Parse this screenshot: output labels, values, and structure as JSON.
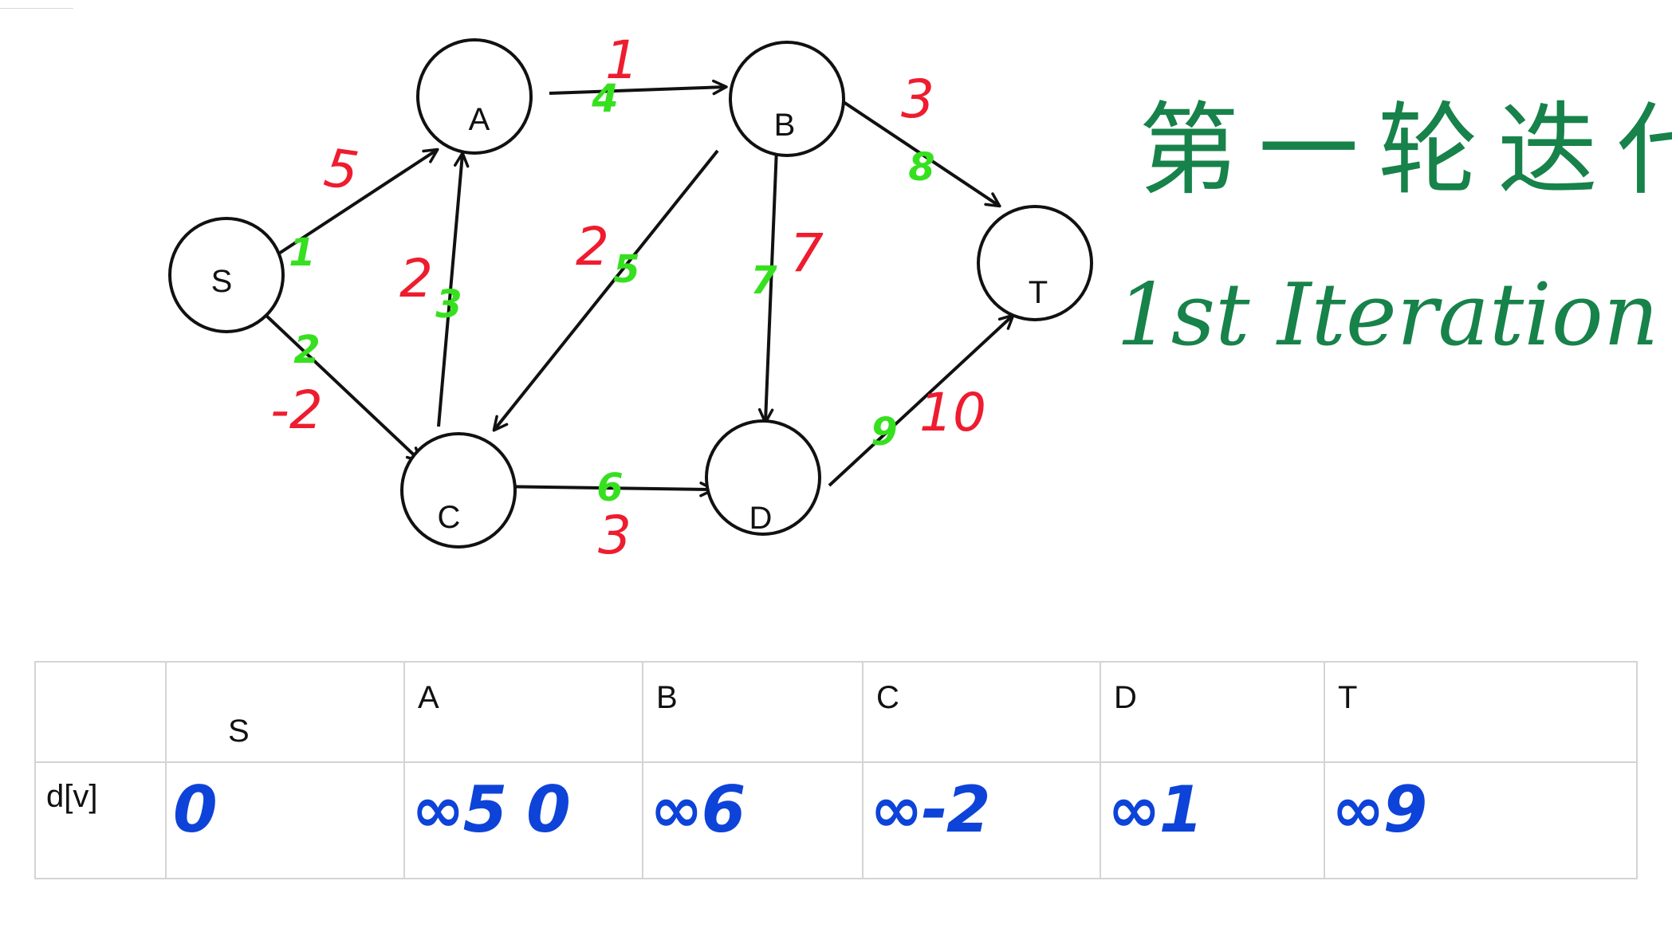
{
  "graph": {
    "nodes": [
      {
        "id": "S",
        "label": "S"
      },
      {
        "id": "A",
        "label": "A"
      },
      {
        "id": "B",
        "label": "B"
      },
      {
        "id": "C",
        "label": "C"
      },
      {
        "id": "D",
        "label": "D"
      },
      {
        "id": "T",
        "label": "T"
      }
    ],
    "edges": [
      {
        "from": "S",
        "to": "A",
        "weight": "5",
        "order": "1"
      },
      {
        "from": "S",
        "to": "C",
        "weight": "-2",
        "order": "2"
      },
      {
        "from": "C",
        "to": "A",
        "weight": "2",
        "order": "3"
      },
      {
        "from": "A",
        "to": "B",
        "weight": "1",
        "order": "4"
      },
      {
        "from": "B",
        "to": "C",
        "weight": "2",
        "order": "5"
      },
      {
        "from": "C",
        "to": "D",
        "weight": "3",
        "order": "6"
      },
      {
        "from": "B",
        "to": "D",
        "weight": "7",
        "order": "7"
      },
      {
        "from": "B",
        "to": "T",
        "weight": "3",
        "order": "8"
      },
      {
        "from": "D",
        "to": "T",
        "weight": "10",
        "order": "9"
      }
    ]
  },
  "title": {
    "chinese": "第一轮迭代",
    "english": "1st Iteration"
  },
  "colors": {
    "weight": "#ee1c2e",
    "order": "#36e01f",
    "title": "#17824a",
    "values": "#0d43d8"
  },
  "table": {
    "row_label": "d[v]",
    "columns": [
      "S",
      "A",
      "B",
      "C",
      "D",
      "T"
    ],
    "values": [
      "0",
      "∞5 0",
      "∞6",
      "∞-2",
      "∞1",
      "∞9"
    ]
  }
}
